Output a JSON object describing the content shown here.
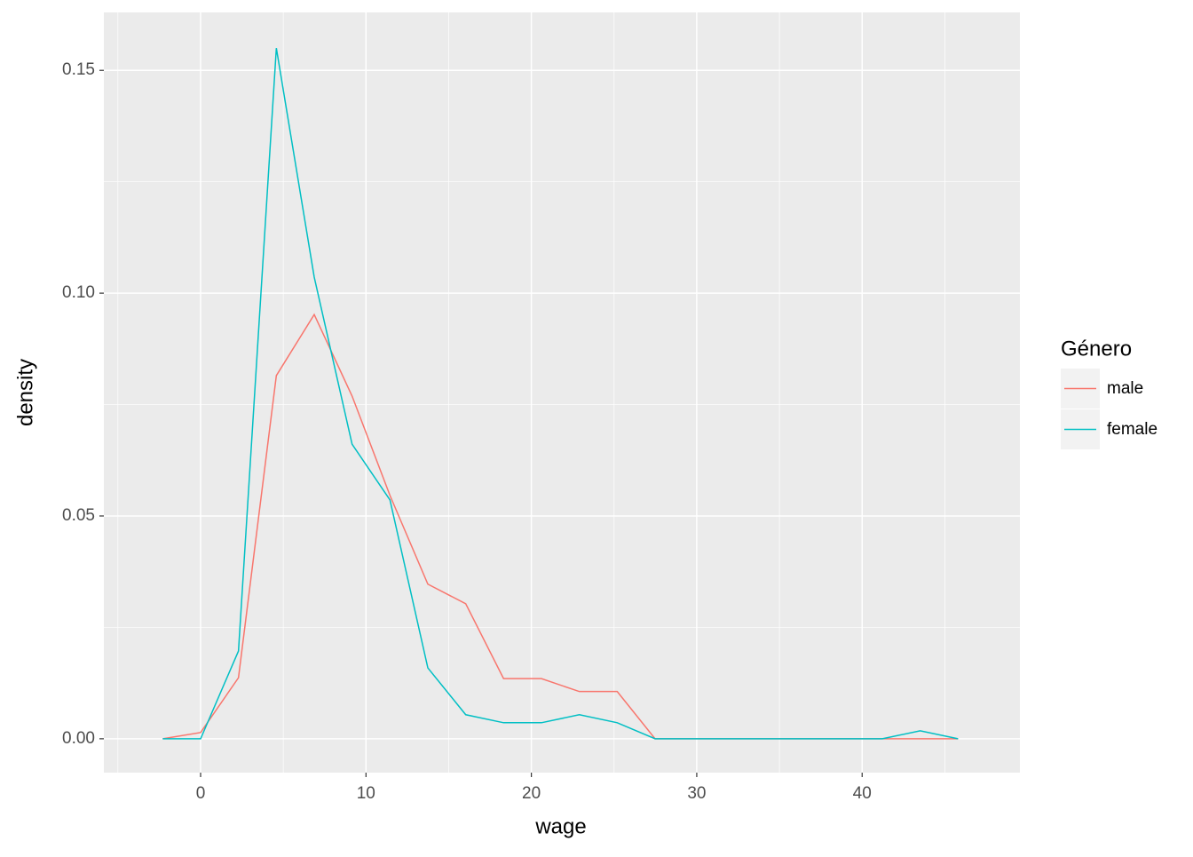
{
  "chart_data": {
    "type": "line",
    "x_label": "wage",
    "y_label": "density",
    "legend_title": "Género",
    "legend_position": "right",
    "grid": true,
    "x": [
      -2.29,
      0,
      2.29,
      4.58,
      6.87,
      9.16,
      11.45,
      13.74,
      16.03,
      18.32,
      20.61,
      22.9,
      25.19,
      27.48,
      29.77,
      32.06,
      34.35,
      36.64,
      38.93,
      41.22,
      43.51,
      45.8
    ],
    "series": [
      {
        "name": "male",
        "color": "#F8766D",
        "values": [
          0,
          0.0014,
          0.0137,
          0.0815,
          0.0952,
          0.0769,
          0.0546,
          0.0347,
          0.0303,
          0.0135,
          0.0135,
          0.0106,
          0.0106,
          0,
          0,
          0,
          0,
          0,
          0,
          0,
          0,
          0
        ]
      },
      {
        "name": "female",
        "color": "#00BFC4",
        "values": [
          0,
          0,
          0.0197,
          0.155,
          0.1036,
          0.0661,
          0.0536,
          0.0159,
          0.0054,
          0.0036,
          0.0036,
          0.0054,
          0.0036,
          0,
          0,
          0,
          0,
          0,
          0,
          0,
          0.0018,
          0
        ]
      }
    ],
    "xlim": [
      -5.85,
      49.54
    ],
    "xticks": [
      0,
      10,
      20,
      30,
      40
    ],
    "xminorticks": [
      -5,
      5,
      15,
      25,
      35,
      45
    ],
    "ylim": [
      -0.0076,
      0.163
    ],
    "yticks": [
      {
        "value": 0,
        "label": "0.00"
      },
      0.05,
      {
        "value": 0.1,
        "label": "0.10"
      },
      0.15
    ],
    "yminorticks": [
      0.025,
      0.075,
      0.125
    ]
  }
}
